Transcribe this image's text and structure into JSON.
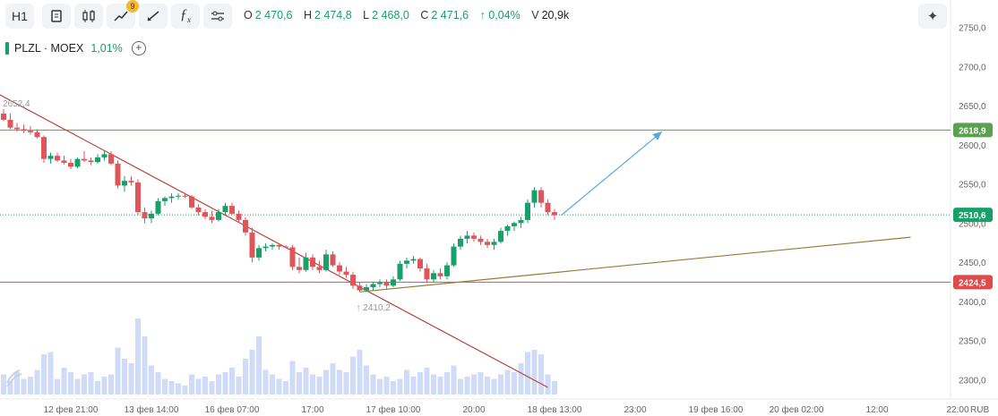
{
  "toolbar": {
    "timeframe": "H1",
    "indicators_badge": "9"
  },
  "quote": {
    "o_label": "O",
    "o": "2 470,6",
    "h_label": "H",
    "h": "2 474,8",
    "l_label": "L",
    "l": "2 468,0",
    "c_label": "C",
    "c": "2 471,6",
    "change": "↑ 0,04%",
    "v_label": "V",
    "v": "20,9k"
  },
  "legend": {
    "symbol": "PLZL · MOEX",
    "change": "1,01%"
  },
  "colors": {
    "up": "#17a06a",
    "down": "#e0555a",
    "volume": "#d0dbf7",
    "support": "#dd4b4b",
    "resistance": "#5aa04e",
    "arrow": "#5aa9e0",
    "downtrend": "#b8453a",
    "uptrend": "#9a7a3a"
  },
  "chart_data": {
    "type": "candlestick",
    "currency": "RUB",
    "ylim": [
      2290,
      2760
    ],
    "y_ticks": [
      "2750,0",
      "2700,0",
      "2650,0",
      "2600,0",
      "2550,0",
      "2500,0",
      "2450,0",
      "2400,0",
      "2350,0",
      "2300,0"
    ],
    "y_tick_values": [
      2750,
      2700,
      2650,
      2600,
      2550,
      2500,
      2450,
      2400,
      2350,
      2300
    ],
    "x_ticks": [
      {
        "label": "12 фев 21:00",
        "i": 10
      },
      {
        "label": "13 фев 14:00",
        "i": 22
      },
      {
        "label": "16 фев 07:00",
        "i": 34
      },
      {
        "label": "17:00",
        "i": 46
      },
      {
        "label": "17 фев 10:00",
        "i": 58
      },
      {
        "label": "20:00",
        "i": 70
      },
      {
        "label": "18 фев 13:00",
        "i": 82
      },
      {
        "label": "23:00",
        "i": 94
      },
      {
        "label": "19 фев 16:00",
        "i": 106
      },
      {
        "label": "20 фев 02:00",
        "i": 118
      },
      {
        "label": "12:00",
        "i": 130
      },
      {
        "label": "22:00",
        "i": 142
      }
    ],
    "candles": [
      [
        2640,
        2646,
        2630,
        2632
      ],
      [
        2632,
        2640,
        2620,
        2622
      ],
      [
        2622,
        2628,
        2617,
        2620
      ],
      [
        2620,
        2626,
        2615,
        2618
      ],
      [
        2618,
        2624,
        2613,
        2616
      ],
      [
        2616,
        2620,
        2608,
        2610
      ],
      [
        2610,
        2612,
        2577,
        2582
      ],
      [
        2582,
        2590,
        2576,
        2586
      ],
      [
        2586,
        2590,
        2578,
        2580
      ],
      [
        2580,
        2586,
        2575,
        2577
      ],
      [
        2577,
        2582,
        2569,
        2572
      ],
      [
        2572,
        2584,
        2570,
        2582
      ],
      [
        2582,
        2592,
        2578,
        2580
      ],
      [
        2580,
        2584,
        2574,
        2578
      ],
      [
        2578,
        2588,
        2576,
        2584
      ],
      [
        2584,
        2592,
        2580,
        2588
      ],
      [
        2588,
        2592,
        2574,
        2576
      ],
      [
        2576,
        2580,
        2544,
        2548
      ],
      [
        2548,
        2560,
        2540,
        2554
      ],
      [
        2554,
        2560,
        2548,
        2552
      ],
      [
        2552,
        2556,
        2510,
        2514
      ],
      [
        2514,
        2520,
        2500,
        2506
      ],
      [
        2506,
        2516,
        2500,
        2512
      ],
      [
        2512,
        2532,
        2510,
        2528
      ],
      [
        2528,
        2534,
        2522,
        2532
      ],
      [
        2532,
        2538,
        2526,
        2534
      ],
      [
        2534,
        2538,
        2530,
        2535
      ],
      [
        2535,
        2538,
        2532,
        2534
      ],
      [
        2534,
        2536,
        2518,
        2520
      ],
      [
        2520,
        2524,
        2510,
        2514
      ],
      [
        2514,
        2518,
        2505,
        2508
      ],
      [
        2508,
        2516,
        2500,
        2504
      ],
      [
        2504,
        2518,
        2502,
        2514
      ],
      [
        2514,
        2526,
        2510,
        2522
      ],
      [
        2522,
        2526,
        2510,
        2512
      ],
      [
        2512,
        2516,
        2500,
        2504
      ],
      [
        2504,
        2508,
        2484,
        2488
      ],
      [
        2488,
        2494,
        2450,
        2456
      ],
      [
        2456,
        2472,
        2452,
        2468
      ],
      [
        2468,
        2474,
        2464,
        2470
      ],
      [
        2470,
        2474,
        2466,
        2472
      ],
      [
        2472,
        2474,
        2466,
        2470
      ],
      [
        2470,
        2472,
        2468,
        2469
      ],
      [
        2469,
        2472,
        2440,
        2444
      ],
      [
        2444,
        2456,
        2436,
        2440
      ],
      [
        2440,
        2462,
        2438,
        2456
      ],
      [
        2456,
        2460,
        2440,
        2444
      ],
      [
        2444,
        2452,
        2436,
        2440
      ],
      [
        2440,
        2466,
        2438,
        2460
      ],
      [
        2460,
        2464,
        2444,
        2446
      ],
      [
        2446,
        2450,
        2434,
        2438
      ],
      [
        2438,
        2444,
        2430,
        2434
      ],
      [
        2434,
        2438,
        2416,
        2420
      ],
      [
        2420,
        2424,
        2412,
        2414
      ],
      [
        2414,
        2422,
        2412,
        2418
      ],
      [
        2418,
        2424,
        2414,
        2422
      ],
      [
        2422,
        2428,
        2418,
        2424
      ],
      [
        2424,
        2428,
        2416,
        2420
      ],
      [
        2420,
        2432,
        2418,
        2428
      ],
      [
        2428,
        2452,
        2426,
        2448
      ],
      [
        2448,
        2456,
        2442,
        2452
      ],
      [
        2452,
        2458,
        2448,
        2454
      ],
      [
        2454,
        2456,
        2438,
        2442
      ],
      [
        2442,
        2448,
        2424,
        2428
      ],
      [
        2428,
        2440,
        2424,
        2436
      ],
      [
        2436,
        2442,
        2428,
        2432
      ],
      [
        2432,
        2450,
        2428,
        2446
      ],
      [
        2446,
        2474,
        2444,
        2470
      ],
      [
        2470,
        2484,
        2466,
        2480
      ],
      [
        2480,
        2490,
        2474,
        2484
      ],
      [
        2484,
        2488,
        2476,
        2480
      ],
      [
        2480,
        2484,
        2472,
        2476
      ],
      [
        2476,
        2480,
        2468,
        2472
      ],
      [
        2472,
        2480,
        2466,
        2476
      ],
      [
        2476,
        2494,
        2474,
        2490
      ],
      [
        2490,
        2498,
        2484,
        2496
      ],
      [
        2496,
        2502,
        2490,
        2500
      ],
      [
        2500,
        2508,
        2494,
        2504
      ],
      [
        2504,
        2530,
        2500,
        2526
      ],
      [
        2526,
        2546,
        2520,
        2542
      ],
      [
        2542,
        2546,
        2520,
        2526
      ],
      [
        2526,
        2530,
        2510,
        2514
      ],
      [
        2514,
        2518,
        2504,
        2510
      ]
    ],
    "volume": [
      9,
      6,
      10,
      7,
      8,
      11,
      18,
      19,
      7,
      12,
      10,
      7,
      9,
      10,
      6,
      8,
      9,
      21,
      16,
      14,
      34,
      26,
      13,
      10,
      7,
      6,
      5,
      4,
      9,
      7,
      8,
      6,
      9,
      10,
      12,
      8,
      16,
      20,
      26,
      11,
      9,
      7,
      6,
      15,
      10,
      12,
      9,
      8,
      11,
      14,
      11,
      10,
      17,
      20,
      13,
      9,
      7,
      8,
      6,
      7,
      11,
      8,
      10,
      12,
      9,
      8,
      10,
      13,
      7,
      8,
      9,
      10,
      8,
      7,
      9,
      11,
      10,
      14,
      19,
      20,
      18,
      9,
      6
    ],
    "volume_scale_max": 36,
    "price_labels": [
      {
        "value": 2618.9,
        "text": "2618,9",
        "color": "#5aa04e"
      },
      {
        "value": 2510.6,
        "text": "2510,6",
        "color": "#17a06a"
      },
      {
        "value": 2424.5,
        "text": "2424,5",
        "color": "#dd4b4b"
      }
    ],
    "high_label": {
      "text": "2652,4",
      "value": 2652.4
    },
    "low_label": {
      "text": "↑ 2410,2",
      "value": 2410.2,
      "i": 53
    },
    "hlines": [
      {
        "value": 2618.9,
        "color": "#5aa04e"
      },
      {
        "value": 2510.6,
        "color": "#17a06a",
        "dashed": true
      },
      {
        "value": 2424.5,
        "color": "#dd4b4b"
      }
    ],
    "trendlines": [
      {
        "name": "downtrend",
        "from": {
          "i": -1,
          "v": 2666
        },
        "to": {
          "i": 81,
          "v": 2290
        },
        "color": "#b8453a"
      },
      {
        "name": "uptrend",
        "from": {
          "i": 53,
          "v": 2412
        },
        "to": {
          "i": 135,
          "v": 2482
        },
        "color": "#9a7a3a"
      },
      {
        "name": "target-arrow",
        "from": {
          "i": 83,
          "v": 2510
        },
        "to": {
          "i": 98,
          "v": 2617
        },
        "color": "#5aa9e0",
        "arrow": true
      }
    ]
  }
}
